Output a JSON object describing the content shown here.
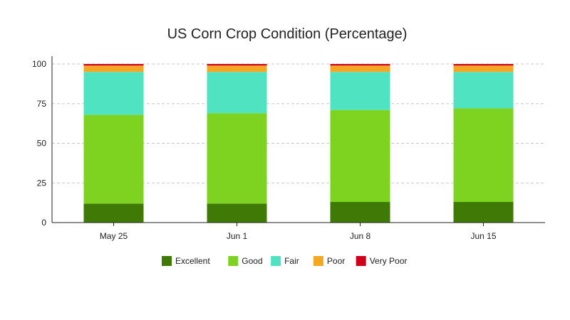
{
  "chart_data": {
    "type": "bar",
    "stacked": true,
    "title": "US Corn Crop Condition (Percentage)",
    "xlabel": "",
    "ylabel": "",
    "categories": [
      "May 25",
      "Jun 1",
      "Jun 8",
      "Jun 15"
    ],
    "ylim": [
      0,
      100
    ],
    "yticks": [
      0,
      25,
      50,
      75,
      100
    ],
    "grid": true,
    "legend_position": "bottom",
    "series": [
      {
        "name": "Excellent",
        "color": "#3f7a07",
        "values": [
          12,
          12,
          13,
          13
        ]
      },
      {
        "name": "Good",
        "color": "#7ed321",
        "values": [
          56,
          57,
          58,
          59
        ]
      },
      {
        "name": "Fair",
        "color": "#50e3c2",
        "values": [
          27,
          26,
          24,
          23
        ]
      },
      {
        "name": "Poor",
        "color": "#f5a623",
        "values": [
          4,
          4,
          4,
          4
        ]
      },
      {
        "name": "Very Poor",
        "color": "#d0021b",
        "values": [
          1,
          1,
          1,
          1
        ]
      }
    ]
  }
}
